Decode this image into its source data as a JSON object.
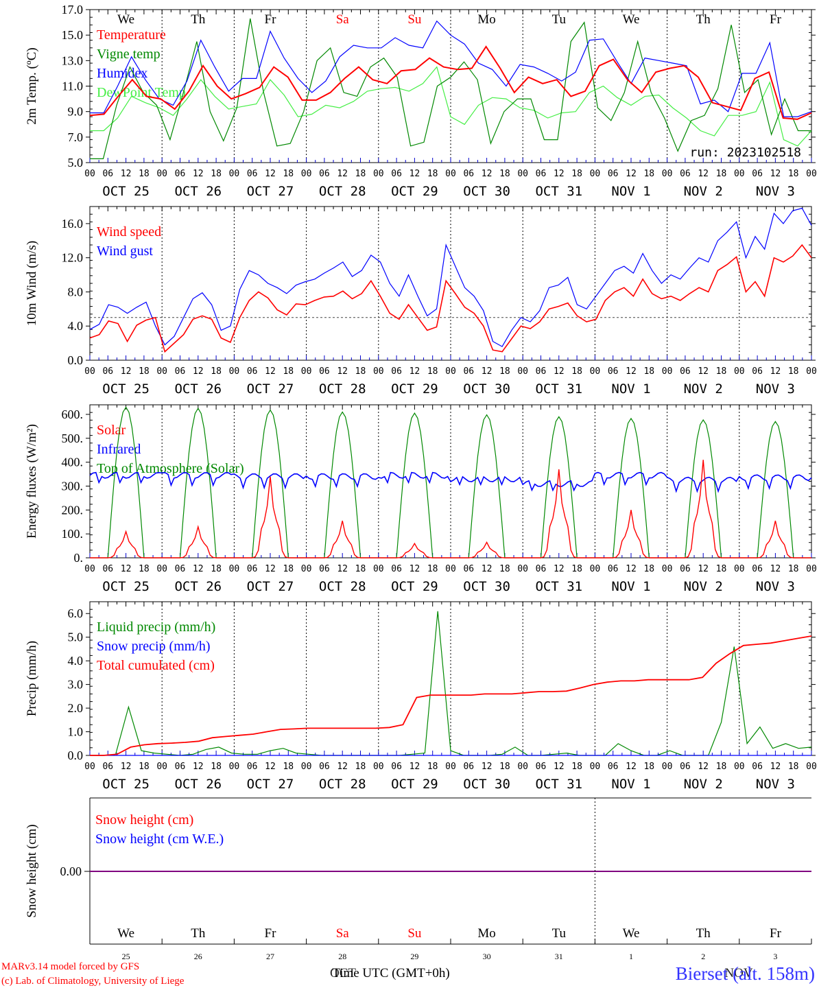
{
  "days": [
    "OCT 25",
    "OCT 26",
    "OCT 27",
    "OCT 28",
    "OCT 29",
    "OCT 30",
    "OCT 31",
    "NOV  1",
    "NOV  2",
    "NOV  3"
  ],
  "weekdays": [
    "We",
    "Th",
    "Fr",
    "Sa",
    "Su",
    "Mo",
    "Tu",
    "We",
    "Th",
    "Fr"
  ],
  "weekday_colors": [
    "#000000",
    "#000000",
    "#000000",
    "#ff0000",
    "#ff0000",
    "#000000",
    "#000000",
    "#000000",
    "#000000",
    "#000000"
  ],
  "hour_ticks": [
    "00",
    "06",
    "12",
    "18"
  ],
  "hour_end": "00",
  "snow_day_numbers": [
    "25",
    "26",
    "27",
    "28",
    "29",
    "30",
    "31",
    "1",
    "2",
    "3"
  ],
  "run_label": "run: 2023102518",
  "footer": {
    "credit_line1": "MARv3.14 model forced by GFS",
    "credit_line2": "(c) Lab. of Climatology, University of Liege",
    "xlabel": "Time UTC (GMT+0h)",
    "month_left": "OCT",
    "month_right": "NOV",
    "station": "Bierset (alt. 158m)"
  },
  "chart_data": [
    {
      "type": "line",
      "ylabel": "2m Temp. (ºC)",
      "ylim": [
        5,
        17
      ],
      "yticks": [
        "5.0",
        "7.0",
        "9.0",
        "11.0",
        "13.0",
        "15.0",
        "17.0"
      ],
      "x": "hours since OCT 25 00 UTC (0-240, 6-hourly)",
      "legend_position": "top-left",
      "series": [
        {
          "name": "Temperature",
          "color": "#ff0000",
          "values": [
            8.7,
            8.8,
            10.2,
            11.5,
            10.2,
            10.0,
            9.2,
            10.6,
            12.6,
            11.0,
            10.0,
            10.4,
            10.9,
            12.5,
            11.7,
            9.9,
            9.9,
            10.5,
            11.6,
            12.5,
            11.5,
            11.2,
            12.2,
            12.3,
            13.2,
            12.5,
            12.3,
            12.4,
            14.1,
            12.4,
            10.5,
            11.7,
            11.2,
            11.5,
            10.2,
            10.6,
            12.6,
            13.1,
            11.5,
            10.5,
            12.1,
            12.4,
            12.6,
            11.7,
            9.7,
            9.4,
            9.1,
            11.6,
            12.1,
            8.5,
            8.4,
            8.9
          ]
        },
        {
          "name": "Vigne temp",
          "color": "#008800",
          "values": [
            5.3,
            5.3,
            9.5,
            12.5,
            10.5,
            9.5,
            6.8,
            10.5,
            14.5,
            9.0,
            6.7,
            9.3,
            16.3,
            10.5,
            6.3,
            6.5,
            9.0,
            13.0,
            14.0,
            10.5,
            10.2,
            12.5,
            13.2,
            11.7,
            6.3,
            6.6,
            11.0,
            11.7,
            12.9,
            11.5,
            6.5,
            9.0,
            10.0,
            10.0,
            6.8,
            6.8,
            14.5,
            16.0,
            9.3,
            8.3,
            10.5,
            14.5,
            10.5,
            8.5,
            5.9,
            8.3,
            8.7,
            10.8,
            15.8,
            10.5,
            11.5,
            7.2,
            10.0,
            7.5,
            7.5
          ]
        },
        {
          "name": "Humidex",
          "color": "#0000ff",
          "values": [
            8.9,
            8.9,
            11.0,
            13.3,
            11.5,
            10.0,
            9.5,
            11.4,
            14.6,
            12.5,
            10.6,
            11.6,
            11.6,
            15.3,
            13.2,
            11.6,
            10.5,
            11.4,
            13.3,
            14.2,
            14.0,
            14.0,
            14.8,
            14.2,
            14.0,
            16.1,
            15.0,
            14.3,
            12.8,
            12.3,
            11.0,
            12.7,
            12.5,
            12.0,
            11.4,
            12.1,
            14.6,
            14.7,
            12.9,
            11.2,
            13.2,
            13.0,
            12.8,
            12.6,
            9.6,
            9.9,
            9.0,
            12.0,
            12.0,
            14.4,
            8.6,
            8.6,
            9.0
          ]
        },
        {
          "name": "DewPoint Temp",
          "color": "#44ee44",
          "values": [
            7.5,
            7.5,
            8.5,
            10.2,
            9.7,
            9.3,
            8.7,
            10.0,
            11.5,
            10.2,
            9.2,
            9.4,
            9.6,
            11.5,
            10.3,
            8.6,
            8.8,
            9.5,
            9.3,
            9.8,
            10.6,
            10.8,
            10.9,
            10.6,
            11.2,
            12.5,
            8.6,
            8.0,
            9.5,
            10.1,
            10.0,
            9.3,
            9.1,
            8.5,
            8.9,
            9.0,
            10.5,
            11.0,
            10.1,
            9.5,
            10.2,
            10.3,
            9.3,
            8.5,
            7.5,
            7.1,
            8.7,
            8.7,
            9.0,
            11.3,
            6.8,
            6.3,
            7.5
          ]
        }
      ]
    },
    {
      "type": "line",
      "ylabel": "10m Wind (m/s)",
      "ylim": [
        0,
        18
      ],
      "yticks": [
        "0.0",
        "4.0",
        "8.0",
        "12.0",
        "16.0"
      ],
      "reference_line": 5,
      "legend_position": "top-left",
      "series": [
        {
          "name": "Wind speed",
          "color": "#ff0000",
          "values": [
            2.6,
            3.0,
            4.6,
            4.3,
            2.2,
            4.1,
            4.7,
            5.0,
            1.0,
            2.0,
            3.0,
            4.8,
            5.2,
            4.8,
            2.6,
            2.1,
            5.0,
            7.0,
            8.0,
            7.3,
            5.9,
            5.3,
            6.6,
            6.5,
            7.0,
            7.4,
            7.5,
            8.1,
            7.2,
            7.8,
            9.3,
            7.5,
            5.5,
            4.8,
            6.5,
            5.0,
            3.5,
            3.9,
            9.3,
            7.8,
            6.2,
            5.5,
            4.0,
            1.2,
            1.0,
            2.5,
            4.0,
            3.7,
            4.5,
            6.0,
            6.3,
            6.7,
            5.2,
            4.5,
            4.8,
            7.0,
            8.0,
            8.5,
            7.5,
            9.5,
            7.8,
            7.2,
            7.5,
            7.0,
            7.8,
            8.5,
            8.0,
            10.5,
            11.2,
            12.1,
            8.0,
            9.2,
            7.5,
            12.0,
            11.5,
            12.2,
            13.5,
            12.0
          ]
        },
        {
          "name": "Wind gust",
          "color": "#0000ff",
          "values": [
            3.6,
            4.2,
            6.5,
            6.2,
            5.5,
            6.2,
            6.8,
            4.0,
            1.8,
            2.8,
            5.0,
            7.2,
            7.9,
            6.5,
            3.5,
            4.0,
            8.3,
            10.5,
            10.0,
            9.0,
            8.5,
            7.8,
            8.8,
            9.2,
            9.5,
            10.2,
            10.8,
            11.5,
            9.8,
            10.5,
            12.3,
            11.5,
            9.0,
            7.5,
            10.0,
            7.5,
            5.2,
            6.0,
            13.5,
            11.0,
            8.5,
            7.5,
            5.8,
            2.2,
            1.6,
            3.5,
            5.0,
            4.5,
            5.8,
            8.5,
            8.8,
            9.7,
            6.5,
            6.0,
            7.5,
            9.0,
            10.5,
            11.0,
            10.2,
            12.5,
            10.5,
            9.0,
            10.0,
            9.5,
            10.8,
            12.0,
            11.5,
            14.0,
            15.0,
            16.2,
            12.0,
            14.5,
            13.0,
            17.2,
            16.0,
            17.5,
            17.8,
            15.8
          ]
        }
      ]
    },
    {
      "type": "line",
      "ylabel": "Energy fluxes (W/m²)",
      "ylim": [
        0,
        640
      ],
      "yticks": [
        "0.",
        "100.",
        "200.",
        "300.",
        "400.",
        "500.",
        "600."
      ],
      "legend_position": "top-left",
      "solar_peaks": [
        110,
        130,
        340,
        155,
        60,
        65,
        370,
        200,
        410,
        155
      ],
      "toa_peaks": [
        630,
        625,
        618,
        610,
        605,
        598,
        590,
        583,
        577,
        570
      ],
      "infrared_daily": [
        345,
        345,
        340,
        340,
        345,
        330,
        310,
        345,
        325,
        335
      ],
      "series": [
        {
          "name": "Solar",
          "color": "#ff0000"
        },
        {
          "name": "Infrared",
          "color": "#0000ff"
        },
        {
          "name": "Top of Atmosphere (Solar)",
          "color": "#008800"
        }
      ]
    },
    {
      "type": "line",
      "ylabel": "Precip (mm/h)",
      "ylim": [
        0,
        6.5
      ],
      "yticks": [
        "0.0",
        "1.0",
        "2.0",
        "3.0",
        "4.0",
        "5.0",
        "6.0"
      ],
      "legend_position": "top-left",
      "series": [
        {
          "name": "Liquid precip (mm/h)",
          "color": "#008800",
          "values": [
            0,
            0,
            0.05,
            2.05,
            0.2,
            0.1,
            0.05,
            0,
            0.05,
            0.25,
            0.35,
            0.1,
            0.05,
            0.05,
            0.2,
            0.3,
            0.1,
            0.05,
            0,
            0,
            0,
            0,
            0,
            0,
            0,
            0.05,
            0.1,
            6.1,
            0.2,
            0,
            0,
            0,
            0.05,
            0.35,
            0,
            0,
            0.05,
            0.1,
            0,
            0,
            0,
            0.5,
            0.2,
            0,
            0,
            0.2,
            0,
            0,
            0,
            1.4,
            4.6,
            0.5,
            1.2,
            0.3,
            0.5,
            0.3,
            0.35
          ]
        },
        {
          "name": "Snow precip (mm/h)",
          "color": "#0000ff",
          "values": [
            0,
            0,
            0,
            0,
            0,
            0,
            0,
            0,
            0,
            0,
            0,
            0,
            0,
            0,
            0,
            0,
            0,
            0,
            0,
            0,
            0,
            0,
            0,
            0,
            0,
            0,
            0,
            0,
            0,
            0,
            0,
            0,
            0,
            0,
            0,
            0,
            0,
            0,
            0,
            0,
            0,
            0,
            0,
            0,
            0,
            0,
            0,
            0,
            0,
            0,
            0,
            0,
            0,
            0,
            0,
            0,
            0
          ]
        },
        {
          "name": "Total cumulated (cm)",
          "color": "#ff0000",
          "values": [
            0,
            0,
            0.05,
            0.35,
            0.45,
            0.5,
            0.52,
            0.55,
            0.6,
            0.75,
            0.8,
            0.85,
            0.9,
            1.0,
            1.1,
            1.12,
            1.15,
            1.15,
            1.15,
            1.15,
            1.15,
            1.15,
            1.18,
            1.3,
            2.45,
            2.55,
            2.55,
            2.55,
            2.55,
            2.6,
            2.6,
            2.6,
            2.65,
            2.7,
            2.7,
            2.72,
            2.85,
            3.0,
            3.1,
            3.15,
            3.15,
            3.2,
            3.2,
            3.2,
            3.2,
            3.3,
            3.9,
            4.3,
            4.65,
            4.7,
            4.75,
            4.85,
            4.95,
            5.05
          ]
        }
      ]
    },
    {
      "type": "line",
      "ylabel": "Snow height (cm)",
      "yticks": [
        "0.00"
      ],
      "legend_position": "top-left",
      "series": [
        {
          "name": "Snow height (cm)",
          "color": "#ff0000",
          "values": [
            0,
            0
          ]
        },
        {
          "name": "Snow height (cm W.E.)",
          "color": "#0000ff",
          "values": [
            0,
            0
          ]
        }
      ]
    }
  ]
}
